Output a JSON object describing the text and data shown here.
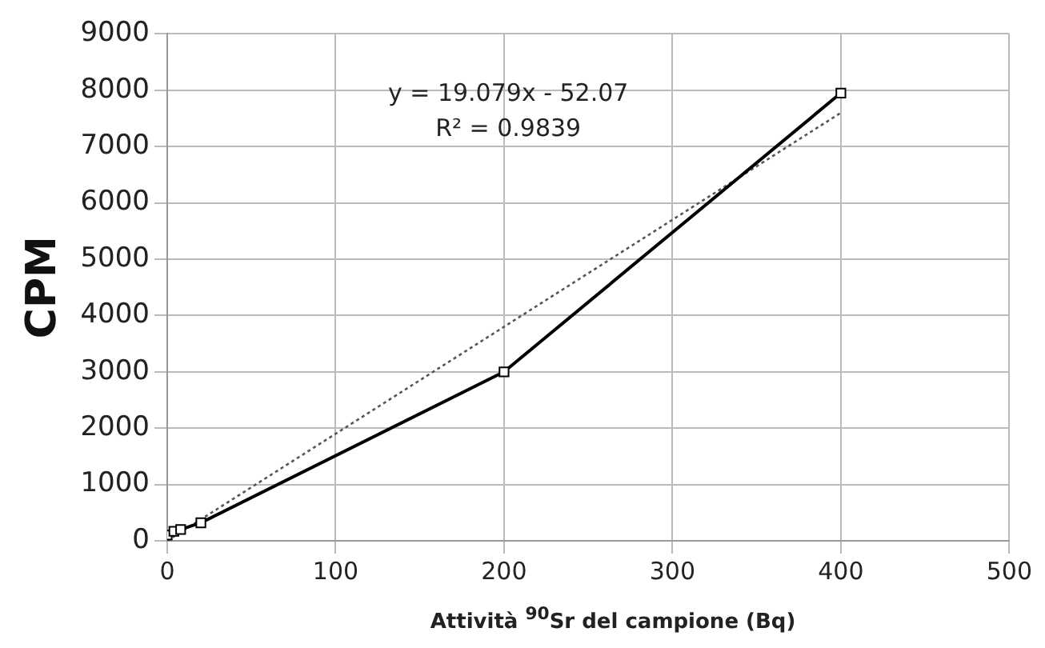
{
  "chart_data": {
    "type": "line",
    "xlabel": "Attività $^{90}$Sr del campione (Bq)",
    "ylabel": "CPM",
    "annotations": [
      "y = 19.079x - 52.07",
      "R² = 0.9839"
    ],
    "series": [
      {
        "type": "line",
        "color": "#000000",
        "marker": "square",
        "line_style": "solid",
        "x": [
          0,
          4,
          8,
          20,
          200,
          400
        ],
        "values": [
          100,
          170,
          200,
          320,
          3000,
          7950
        ]
      },
      {
        "type": "line",
        "color": "#555555",
        "marker": "none",
        "line_style": "dotted",
        "x": [
          0,
          400
        ],
        "values": [
          0,
          7600
        ]
      }
    ],
    "xlim": [
      0,
      500
    ],
    "xticks": [
      0,
      100,
      200,
      300,
      400,
      500
    ],
    "ylim": [
      0,
      9000
    ],
    "yticks": [
      0,
      1000,
      2000,
      3000,
      4000,
      5000,
      6000,
      7000,
      8000,
      9000
    ],
    "grid": true,
    "legend": false
  }
}
